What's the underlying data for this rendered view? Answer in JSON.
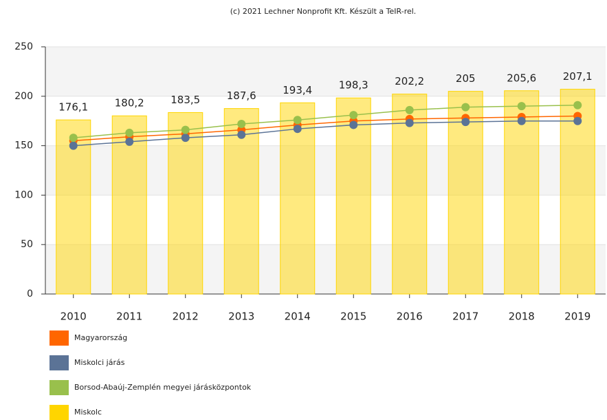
{
  "chart_data": {
    "type": "combo",
    "credit": "(c) 2021 Lechner Nonprofit Kft. Készült a TeIR-rel.",
    "categories": [
      "2010",
      "2011",
      "2012",
      "2013",
      "2014",
      "2015",
      "2016",
      "2017",
      "2018",
      "2019"
    ],
    "ylim": [
      0,
      250
    ],
    "yticks": [
      0,
      50,
      100,
      150,
      200,
      250
    ],
    "grid": true,
    "series": [
      {
        "name": "Magyarország",
        "type": "line",
        "color": "#ff6600",
        "values": [
          155,
          159,
          162,
          166,
          171,
          175,
          177,
          178,
          179,
          180
        ]
      },
      {
        "name": "Miskolci járás",
        "type": "line",
        "color": "#5b7396",
        "values": [
          150,
          154,
          158,
          161,
          167,
          171,
          173,
          174,
          175,
          175
        ]
      },
      {
        "name": "Borsod-Abaúj-Zemplén megyei járásközpontok",
        "type": "line",
        "color": "#99c04c",
        "values": [
          158,
          163,
          166,
          172,
          176,
          181,
          186,
          189,
          190,
          191
        ]
      },
      {
        "name": "Miskolc",
        "type": "bar",
        "color": "#ffd500",
        "values": [
          176.1,
          180.2,
          183.5,
          187.6,
          193.4,
          198.3,
          202.2,
          205,
          205.6,
          207.1
        ],
        "value_labels": [
          "176,1",
          "180,2",
          "183,5",
          "187,6",
          "193,4",
          "198,3",
          "202,2",
          "205",
          "205,6",
          "207,1"
        ]
      }
    ],
    "legend": "bottom-left"
  }
}
